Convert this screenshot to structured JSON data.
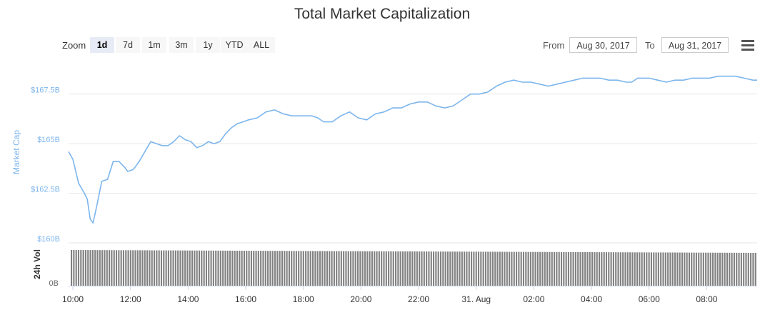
{
  "title": "Total Market Capitalization",
  "zoom": {
    "label": "Zoom",
    "buttons": [
      "1d",
      "7d",
      "1m",
      "3m",
      "1y",
      "YTD",
      "ALL"
    ],
    "active": "1d"
  },
  "range": {
    "from_label": "From",
    "from_value": "Aug 30, 2017",
    "to_label": "To",
    "to_value": "Aug 31, 2017"
  },
  "colors": {
    "line": "#7cb5ec",
    "volume": "#808080",
    "grid": "#e6e6e6",
    "axis_text": "#666666",
    "accent_text": "#7cb5ec"
  },
  "icons": {
    "menu": "hamburger-menu-icon"
  },
  "chart_data": {
    "type": "line",
    "title": "Total Market Capitalization",
    "ylabel": "Market Cap",
    "volume_label": "24h Vol",
    "ylim": [
      160,
      169
    ],
    "yticks": [
      {
        "value": 160,
        "label": "$160B"
      },
      {
        "value": 162.5,
        "label": "$162.5B"
      },
      {
        "value": 165,
        "label": "$165B"
      },
      {
        "value": 167.5,
        "label": "$167.5B"
      }
    ],
    "volume_zero_label": "0B",
    "x_unit": "hours since Aug 30, 2017 00:00",
    "xlim": [
      9.85,
      33.75
    ],
    "xticks": [
      {
        "value": 10,
        "label": "10:00"
      },
      {
        "value": 12,
        "label": "12:00"
      },
      {
        "value": 14,
        "label": "14:00"
      },
      {
        "value": 16,
        "label": "16:00"
      },
      {
        "value": 18,
        "label": "18:00"
      },
      {
        "value": 20,
        "label": "20:00"
      },
      {
        "value": 22,
        "label": "22:00"
      },
      {
        "value": 24,
        "label": "31. Aug"
      },
      {
        "value": 26,
        "label": "02:00"
      },
      {
        "value": 28,
        "label": "04:00"
      },
      {
        "value": 30,
        "label": "06:00"
      },
      {
        "value": 32,
        "label": "08:00"
      }
    ],
    "series": [
      {
        "name": "Market Cap",
        "x": [
          9.85,
          10.0,
          10.2,
          10.4,
          10.5,
          10.6,
          10.7,
          10.85,
          11.0,
          11.2,
          11.4,
          11.6,
          11.8,
          11.9,
          12.1,
          12.3,
          12.5,
          12.7,
          12.9,
          13.1,
          13.3,
          13.5,
          13.7,
          13.9,
          14.1,
          14.3,
          14.5,
          14.7,
          14.9,
          15.1,
          15.3,
          15.5,
          15.7,
          15.9,
          16.1,
          16.4,
          16.7,
          17.0,
          17.3,
          17.6,
          17.9,
          18.1,
          18.3,
          18.5,
          18.7,
          19.0,
          19.3,
          19.6,
          19.9,
          20.2,
          20.5,
          20.8,
          21.1,
          21.4,
          21.7,
          22.0,
          22.3,
          22.6,
          22.9,
          23.2,
          23.5,
          23.8,
          24.1,
          24.4,
          24.7,
          25.0,
          25.3,
          25.6,
          25.9,
          26.2,
          26.5,
          26.8,
          27.1,
          27.4,
          27.7,
          28.0,
          28.3,
          28.6,
          28.9,
          29.2,
          29.4,
          29.6,
          29.8,
          30.0,
          30.3,
          30.6,
          30.9,
          31.2,
          31.5,
          31.8,
          32.1,
          32.4,
          32.7,
          33.0,
          33.3,
          33.6,
          33.75
        ],
        "y": [
          164.6,
          164.2,
          163.0,
          162.5,
          162.2,
          161.2,
          161.0,
          162.0,
          163.1,
          163.2,
          164.1,
          164.1,
          163.8,
          163.6,
          163.7,
          164.1,
          164.6,
          165.1,
          165.0,
          164.9,
          164.9,
          165.1,
          165.4,
          165.2,
          165.1,
          164.8,
          164.9,
          165.1,
          165.0,
          165.1,
          165.5,
          165.8,
          166.0,
          166.1,
          166.2,
          166.3,
          166.6,
          166.7,
          166.5,
          166.4,
          166.4,
          166.4,
          166.4,
          166.3,
          166.1,
          166.1,
          166.4,
          166.6,
          166.3,
          166.2,
          166.5,
          166.6,
          166.8,
          166.8,
          167.0,
          167.1,
          167.1,
          166.9,
          166.8,
          166.9,
          167.2,
          167.5,
          167.5,
          167.6,
          167.9,
          168.1,
          168.2,
          168.1,
          168.1,
          168.0,
          167.9,
          168.0,
          168.1,
          168.2,
          168.3,
          168.3,
          168.3,
          168.2,
          168.2,
          168.1,
          168.1,
          168.3,
          168.3,
          168.3,
          168.2,
          168.1,
          168.2,
          168.2,
          168.3,
          168.3,
          168.3,
          168.4,
          168.4,
          168.4,
          168.3,
          168.2,
          168.2
        ]
      }
    ],
    "volume": {
      "note": "24h volume shown as a dense band of gray bars, slowly declining from left to right",
      "relative_start": 1.0,
      "relative_end": 0.92
    },
    "grid": true,
    "legend": "none"
  }
}
